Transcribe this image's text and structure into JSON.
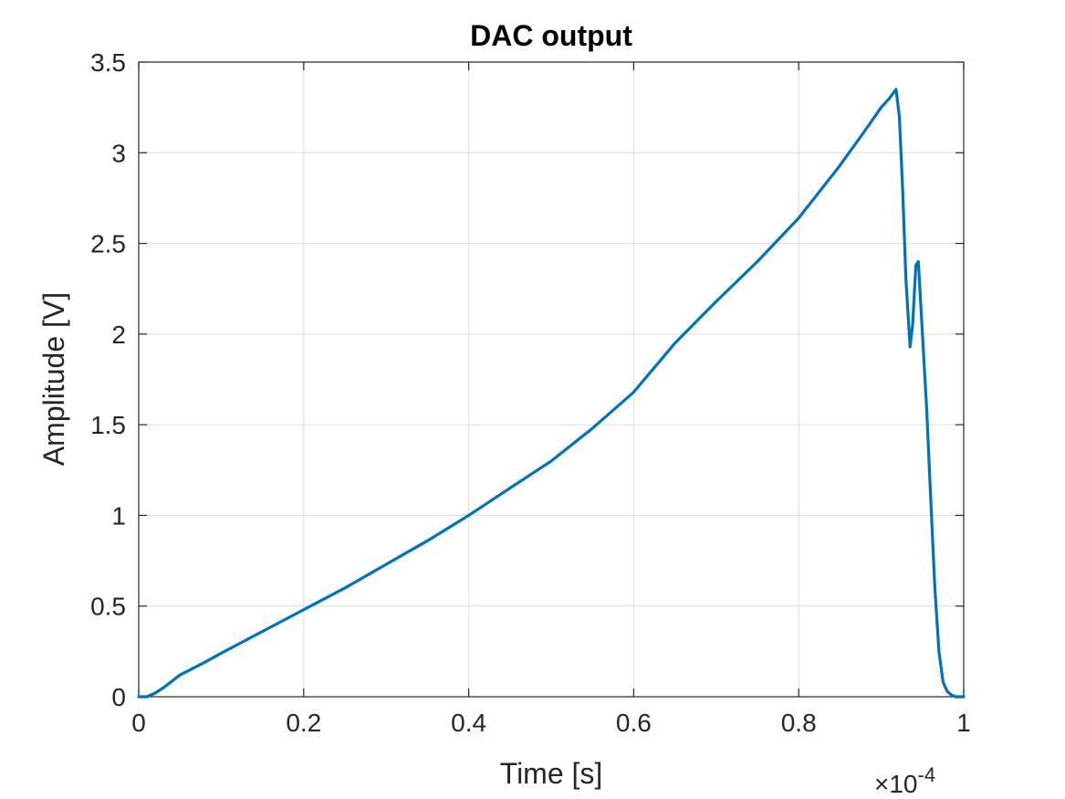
{
  "chart_data": {
    "type": "line",
    "title": "DAC output",
    "xlabel": "Time [s]",
    "ylabel": "Amplitude [V]",
    "x_exponent_base": "×10",
    "x_exponent_power": "-4",
    "xlim": [
      0,
      1
    ],
    "ylim": [
      0,
      3.5
    ],
    "xticks": [
      0,
      0.2,
      0.4,
      0.6,
      0.8,
      1
    ],
    "xtick_labels": [
      "0",
      "0.2",
      "0.4",
      "0.6",
      "0.8",
      "1"
    ],
    "yticks": [
      0,
      0.5,
      1,
      1.5,
      2,
      2.5,
      3,
      3.5
    ],
    "ytick_labels": [
      "0",
      "0.5",
      "1",
      "1.5",
      "2",
      "2.5",
      "3",
      "3.5"
    ],
    "grid": true,
    "line_color": "#0072BD",
    "series": [
      {
        "x": [
          0,
          0.01,
          0.02,
          0.03,
          0.05,
          0.08,
          0.1,
          0.15,
          0.2,
          0.25,
          0.3,
          0.35,
          0.4,
          0.45,
          0.5,
          0.55,
          0.6,
          0.65,
          0.7,
          0.75,
          0.8,
          0.85,
          0.88,
          0.9,
          0.91,
          0.918,
          0.922,
          0.926,
          0.93,
          0.935,
          0.938,
          0.942,
          0.945,
          0.95,
          0.955,
          0.96,
          0.965,
          0.97,
          0.975,
          0.98,
          0.985,
          0.99,
          0.995,
          1.0
        ],
        "y": [
          0,
          0,
          0.02,
          0.05,
          0.12,
          0.19,
          0.24,
          0.36,
          0.48,
          0.6,
          0.73,
          0.86,
          1.0,
          1.15,
          1.3,
          1.48,
          1.68,
          1.95,
          2.18,
          2.4,
          2.64,
          2.93,
          3.12,
          3.25,
          3.3,
          3.35,
          3.2,
          2.8,
          2.3,
          1.93,
          2.05,
          2.38,
          2.4,
          2.0,
          1.6,
          1.1,
          0.6,
          0.25,
          0.08,
          0.03,
          0.01,
          0.0,
          0.0,
          0.0
        ]
      }
    ]
  }
}
